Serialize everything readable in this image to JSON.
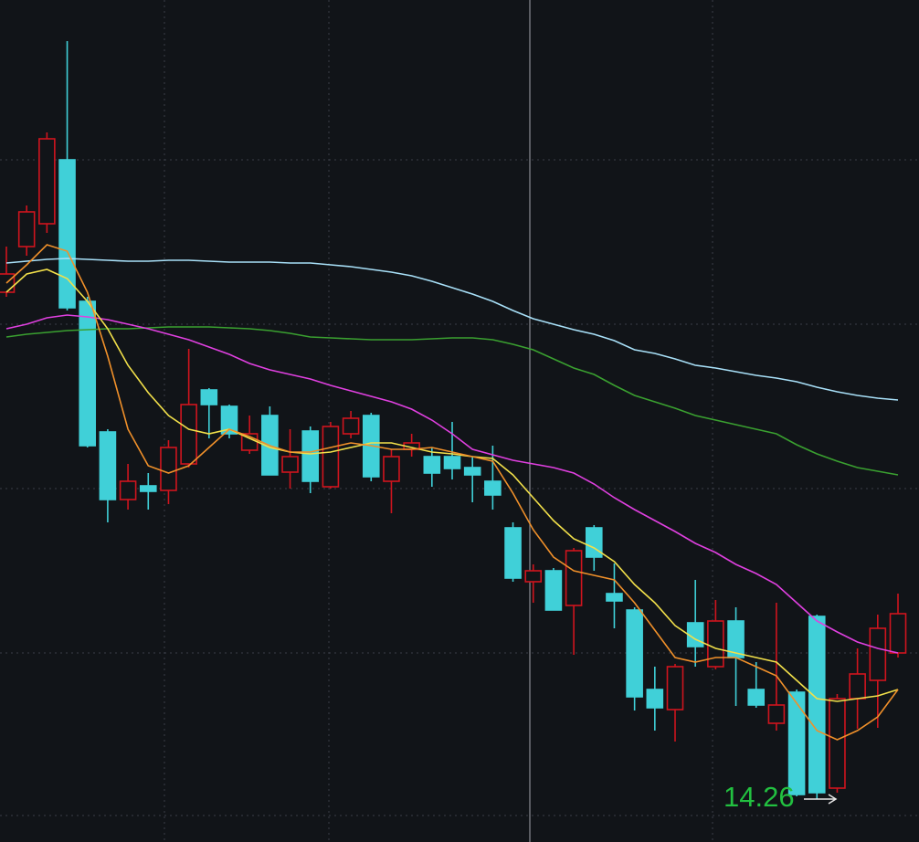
{
  "chart_data": {
    "type": "candlestick",
    "categories": [
      null,
      null,
      null,
      null,
      null,
      null,
      null,
      null,
      null,
      null,
      null,
      null,
      null,
      null,
      null,
      null,
      null,
      null,
      null,
      null,
      null,
      null,
      null,
      null,
      null,
      null,
      null,
      null,
      null,
      null,
      null,
      null,
      null,
      null,
      null,
      null,
      null,
      null,
      null,
      null,
      null,
      null,
      null,
      null,
      null
    ],
    "open": [
      19.81,
      20.31,
      20.56,
      21.26,
      19.71,
      18.28,
      17.54,
      17.69,
      17.64,
      17.93,
      18.74,
      18.56,
      18.08,
      18.46,
      17.84,
      18.29,
      17.68,
      18.26,
      18.46,
      17.74,
      18.09,
      18.01,
      18.01,
      17.89,
      17.74,
      17.23,
      16.64,
      16.76,
      16.38,
      17.23,
      16.51,
      16.33,
      15.46,
      15.24,
      16.19,
      15.71,
      16.21,
      15.46,
      15.09,
      15.43,
      16.26,
      14.38,
      15.36,
      15.56,
      15.86
    ],
    "high": [
      20.31,
      20.76,
      21.56,
      22.56,
      19.76,
      18.31,
      17.93,
      17.83,
      18.19,
      19.19,
      18.76,
      18.58,
      18.46,
      18.56,
      18.31,
      18.34,
      18.39,
      18.51,
      18.49,
      18.09,
      18.26,
      18.11,
      18.39,
      18.01,
      18.13,
      17.29,
      16.83,
      16.79,
      17.01,
      17.26,
      16.84,
      16.36,
      15.71,
      15.74,
      16.66,
      16.44,
      16.36,
      15.76,
      16.41,
      15.46,
      16.28,
      15.41,
      15.91,
      16.28,
      16.51
    ],
    "low": [
      19.76,
      20.21,
      20.46,
      19.61,
      18.11,
      17.29,
      17.43,
      17.43,
      17.49,
      17.89,
      18.21,
      18.21,
      18.04,
      17.81,
      17.66,
      17.61,
      17.66,
      18.21,
      17.74,
      17.39,
      18.01,
      17.68,
      17.76,
      17.51,
      17.43,
      16.64,
      16.41,
      16.33,
      15.84,
      16.76,
      16.13,
      15.23,
      15.01,
      14.89,
      15.71,
      15.68,
      15.28,
      15.26,
      15.01,
      14.29,
      14.26,
      14.33,
      15.03,
      15.04,
      15.81
    ],
    "close": [
      20.01,
      20.69,
      21.49,
      19.64,
      18.13,
      17.54,
      17.74,
      17.63,
      18.11,
      18.58,
      18.58,
      18.26,
      18.26,
      17.81,
      18.01,
      17.74,
      18.34,
      18.43,
      17.79,
      18.01,
      18.16,
      17.83,
      17.88,
      17.81,
      17.59,
      16.68,
      16.76,
      16.33,
      16.98,
      16.91,
      16.43,
      15.38,
      15.26,
      15.71,
      15.93,
      16.21,
      15.81,
      15.29,
      15.29,
      14.31,
      14.33,
      15.36,
      15.63,
      16.13,
      16.29
    ],
    "up_color": "#d0141e",
    "down_color": "#40d0d8",
    "series": [
      {
        "color": "#a8e0f8",
        "values": [
          20.13,
          20.15,
          20.17,
          20.18,
          20.17,
          20.16,
          20.15,
          20.15,
          20.16,
          20.16,
          20.15,
          20.14,
          20.14,
          20.14,
          20.13,
          20.13,
          20.11,
          20.09,
          20.06,
          20.03,
          19.99,
          19.93,
          19.86,
          19.79,
          19.71,
          19.61,
          19.52,
          19.46,
          19.4,
          19.35,
          19.28,
          19.18,
          19.14,
          19.08,
          19.01,
          18.98,
          18.94,
          18.9,
          18.87,
          18.83,
          18.77,
          18.72,
          18.68,
          18.65,
          18.63
        ]
      },
      {
        "color": "#3aa030",
        "values": [
          19.32,
          19.35,
          19.37,
          19.39,
          19.4,
          19.41,
          19.41,
          19.42,
          19.43,
          19.43,
          19.43,
          19.42,
          19.41,
          19.39,
          19.36,
          19.32,
          19.31,
          19.3,
          19.29,
          19.29,
          19.29,
          19.3,
          19.31,
          19.31,
          19.29,
          19.24,
          19.18,
          19.08,
          18.98,
          18.91,
          18.79,
          18.68,
          18.61,
          18.54,
          18.46,
          18.41,
          18.36,
          18.31,
          18.26,
          18.14,
          18.04,
          17.96,
          17.89,
          17.85,
          17.81
        ]
      },
      {
        "color": "#e040e0",
        "values": [
          19.41,
          19.46,
          19.53,
          19.56,
          19.54,
          19.51,
          19.46,
          19.41,
          19.35,
          19.29,
          19.21,
          19.13,
          19.03,
          18.96,
          18.91,
          18.86,
          18.79,
          18.73,
          18.67,
          18.61,
          18.53,
          18.41,
          18.26,
          18.09,
          18.03,
          17.97,
          17.93,
          17.89,
          17.83,
          17.71,
          17.56,
          17.43,
          17.31,
          17.19,
          17.06,
          16.96,
          16.83,
          16.73,
          16.61,
          16.41,
          16.21,
          16.09,
          15.98,
          15.91,
          15.86
        ]
      },
      {
        "color": "#f2e04a",
        "values": [
          19.81,
          20.01,
          20.06,
          19.96,
          19.71,
          19.41,
          19.01,
          18.71,
          18.46,
          18.31,
          18.26,
          18.31,
          18.21,
          18.11,
          18.06,
          18.04,
          18.06,
          18.11,
          18.16,
          18.16,
          18.11,
          18.06,
          18.04,
          18.01,
          17.99,
          17.81,
          17.56,
          17.31,
          17.11,
          17.01,
          16.86,
          16.61,
          16.41,
          16.16,
          16.01,
          15.91,
          15.86,
          15.81,
          15.76,
          15.56,
          15.36,
          15.33,
          15.36,
          15.39,
          15.46
        ]
      },
      {
        "color": "#f0902a",
        "values": [
          19.91,
          20.11,
          20.33,
          20.26,
          19.81,
          19.11,
          18.31,
          17.91,
          17.83,
          17.91,
          18.11,
          18.31,
          18.23,
          18.13,
          18.06,
          18.06,
          18.11,
          18.16,
          18.13,
          18.09,
          18.09,
          18.11,
          18.06,
          18.01,
          17.96,
          17.61,
          17.21,
          16.91,
          16.76,
          16.71,
          16.66,
          16.41,
          16.11,
          15.81,
          15.76,
          15.81,
          15.81,
          15.71,
          15.61,
          15.31,
          15.01,
          14.91,
          15.01,
          15.16,
          15.46
        ]
      }
    ],
    "ylim": [
      13.79,
      23.01
    ],
    "grid": true,
    "annotation": "14.26",
    "annotation_color": "#22c040"
  }
}
